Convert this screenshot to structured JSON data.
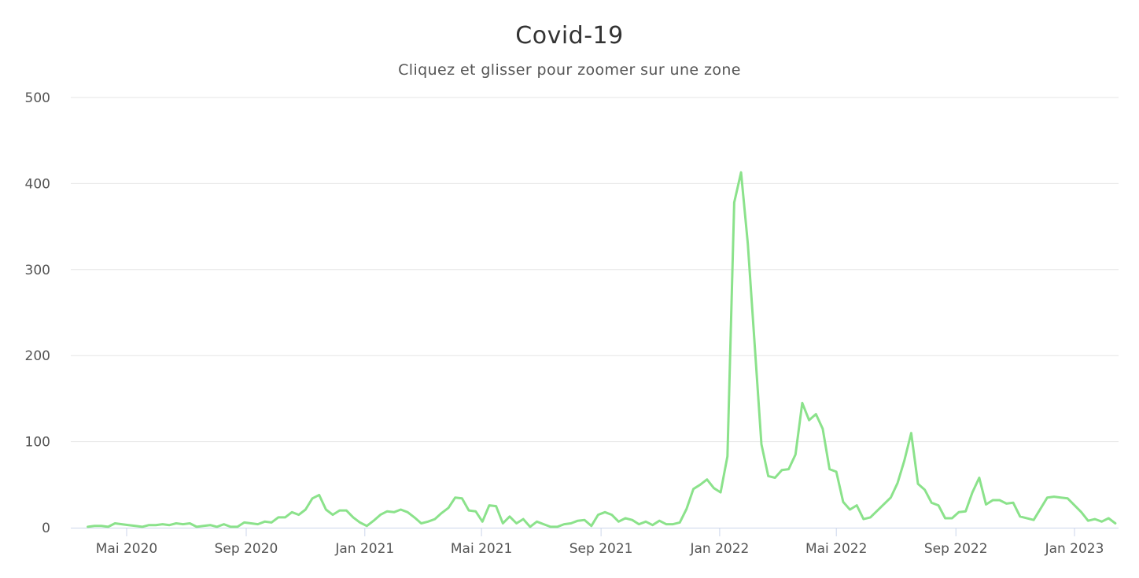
{
  "chart_data": {
    "type": "line",
    "title": "Covid-19",
    "subtitle": "Cliquez et glisser pour zoomer sur une zone",
    "xlabel": "",
    "ylabel": "",
    "ylim": [
      0,
      500
    ],
    "y_ticks": [
      "0",
      "100",
      "200",
      "300",
      "400",
      "500"
    ],
    "x_ticks": [
      {
        "label": "Mai 2020",
        "date": "2020-05-01"
      },
      {
        "label": "Sep 2020",
        "date": "2020-09-01"
      },
      {
        "label": "Jan 2021",
        "date": "2021-01-01"
      },
      {
        "label": "Mai 2021",
        "date": "2021-05-01"
      },
      {
        "label": "Sep 2021",
        "date": "2021-09-01"
      },
      {
        "label": "Jan 2022",
        "date": "2022-01-01"
      },
      {
        "label": "Mai 2022",
        "date": "2022-05-01"
      },
      {
        "label": "Sep 2022",
        "date": "2022-09-01"
      },
      {
        "label": "Jan 2023",
        "date": "2023-01-01"
      }
    ],
    "grid": true,
    "legend": "none",
    "line_color": "#8be28b",
    "series": [
      {
        "points": [
          [
            "2020-03-22",
            1
          ],
          [
            "2020-03-29",
            2
          ],
          [
            "2020-04-05",
            2
          ],
          [
            "2020-04-12",
            1
          ],
          [
            "2020-04-19",
            5
          ],
          [
            "2020-04-26",
            4
          ],
          [
            "2020-05-03",
            3
          ],
          [
            "2020-05-10",
            2
          ],
          [
            "2020-05-17",
            1
          ],
          [
            "2020-05-24",
            3
          ],
          [
            "2020-05-31",
            3
          ],
          [
            "2020-06-07",
            4
          ],
          [
            "2020-06-14",
            3
          ],
          [
            "2020-06-21",
            5
          ],
          [
            "2020-06-28",
            4
          ],
          [
            "2020-07-05",
            5
          ],
          [
            "2020-07-12",
            1
          ],
          [
            "2020-07-19",
            2
          ],
          [
            "2020-07-26",
            3
          ],
          [
            "2020-08-02",
            1
          ],
          [
            "2020-08-09",
            4
          ],
          [
            "2020-08-16",
            1
          ],
          [
            "2020-08-23",
            1
          ],
          [
            "2020-08-30",
            6
          ],
          [
            "2020-09-06",
            5
          ],
          [
            "2020-09-13",
            4
          ],
          [
            "2020-09-20",
            7
          ],
          [
            "2020-09-27",
            6
          ],
          [
            "2020-10-04",
            12
          ],
          [
            "2020-10-11",
            12
          ],
          [
            "2020-10-18",
            18
          ],
          [
            "2020-10-25",
            15
          ],
          [
            "2020-11-01",
            21
          ],
          [
            "2020-11-08",
            34
          ],
          [
            "2020-11-15",
            38
          ],
          [
            "2020-11-22",
            21
          ],
          [
            "2020-11-29",
            15
          ],
          [
            "2020-12-06",
            20
          ],
          [
            "2020-12-13",
            20
          ],
          [
            "2020-12-20",
            12
          ],
          [
            "2020-12-27",
            6
          ],
          [
            "2021-01-03",
            2
          ],
          [
            "2021-01-10",
            8
          ],
          [
            "2021-01-17",
            15
          ],
          [
            "2021-01-24",
            19
          ],
          [
            "2021-01-31",
            18
          ],
          [
            "2021-02-07",
            21
          ],
          [
            "2021-02-14",
            18
          ],
          [
            "2021-02-21",
            12
          ],
          [
            "2021-02-28",
            5
          ],
          [
            "2021-03-07",
            7
          ],
          [
            "2021-03-14",
            10
          ],
          [
            "2021-03-21",
            17
          ],
          [
            "2021-03-28",
            23
          ],
          [
            "2021-04-04",
            35
          ],
          [
            "2021-04-11",
            34
          ],
          [
            "2021-04-18",
            20
          ],
          [
            "2021-04-25",
            19
          ],
          [
            "2021-05-02",
            7
          ],
          [
            "2021-05-09",
            26
          ],
          [
            "2021-05-16",
            25
          ],
          [
            "2021-05-23",
            5
          ],
          [
            "2021-05-30",
            13
          ],
          [
            "2021-06-06",
            5
          ],
          [
            "2021-06-13",
            10
          ],
          [
            "2021-06-20",
            1
          ],
          [
            "2021-06-27",
            7
          ],
          [
            "2021-07-04",
            4
          ],
          [
            "2021-07-11",
            1
          ],
          [
            "2021-07-18",
            1
          ],
          [
            "2021-07-25",
            4
          ],
          [
            "2021-08-01",
            5
          ],
          [
            "2021-08-08",
            8
          ],
          [
            "2021-08-15",
            9
          ],
          [
            "2021-08-22",
            2
          ],
          [
            "2021-08-29",
            15
          ],
          [
            "2021-09-05",
            18
          ],
          [
            "2021-09-12",
            15
          ],
          [
            "2021-09-19",
            7
          ],
          [
            "2021-09-26",
            11
          ],
          [
            "2021-10-03",
            9
          ],
          [
            "2021-10-10",
            4
          ],
          [
            "2021-10-17",
            7
          ],
          [
            "2021-10-24",
            3
          ],
          [
            "2021-10-31",
            8
          ],
          [
            "2021-11-07",
            4
          ],
          [
            "2021-11-14",
            4
          ],
          [
            "2021-11-21",
            6
          ],
          [
            "2021-11-28",
            22
          ],
          [
            "2021-12-05",
            45
          ],
          [
            "2021-12-12",
            50
          ],
          [
            "2021-12-19",
            56
          ],
          [
            "2021-12-26",
            46
          ],
          [
            "2022-01-02",
            41
          ],
          [
            "2022-01-09",
            83
          ],
          [
            "2022-01-16",
            378
          ],
          [
            "2022-01-23",
            413
          ],
          [
            "2022-01-30",
            330
          ],
          [
            "2022-02-13",
            97
          ],
          [
            "2022-02-20",
            60
          ],
          [
            "2022-02-27",
            58
          ],
          [
            "2022-03-06",
            67
          ],
          [
            "2022-03-13",
            68
          ],
          [
            "2022-03-20",
            85
          ],
          [
            "2022-03-27",
            145
          ],
          [
            "2022-04-03",
            125
          ],
          [
            "2022-04-10",
            132
          ],
          [
            "2022-04-17",
            115
          ],
          [
            "2022-04-24",
            68
          ],
          [
            "2022-05-01",
            65
          ],
          [
            "2022-05-08",
            30
          ],
          [
            "2022-05-15",
            21
          ],
          [
            "2022-05-22",
            26
          ],
          [
            "2022-05-29",
            10
          ],
          [
            "2022-06-05",
            12
          ],
          [
            "2022-06-26",
            35
          ],
          [
            "2022-07-03",
            52
          ],
          [
            "2022-07-10",
            78
          ],
          [
            "2022-07-17",
            110
          ],
          [
            "2022-07-24",
            51
          ],
          [
            "2022-07-31",
            44
          ],
          [
            "2022-08-07",
            29
          ],
          [
            "2022-08-14",
            26
          ],
          [
            "2022-08-21",
            11
          ],
          [
            "2022-08-28",
            11
          ],
          [
            "2022-09-04",
            18
          ],
          [
            "2022-09-11",
            19
          ],
          [
            "2022-09-18",
            41
          ],
          [
            "2022-09-25",
            58
          ],
          [
            "2022-10-02",
            27
          ],
          [
            "2022-10-09",
            32
          ],
          [
            "2022-10-16",
            32
          ],
          [
            "2022-10-23",
            28
          ],
          [
            "2022-10-30",
            29
          ],
          [
            "2022-11-06",
            13
          ],
          [
            "2022-11-20",
            9
          ],
          [
            "2022-12-04",
            35
          ],
          [
            "2022-12-11",
            36
          ],
          [
            "2022-12-18",
            35
          ],
          [
            "2022-12-25",
            34
          ],
          [
            "2023-01-08",
            18
          ],
          [
            "2023-01-15",
            8
          ],
          [
            "2023-01-22",
            10
          ],
          [
            "2023-01-29",
            7
          ],
          [
            "2023-02-05",
            11
          ],
          [
            "2023-02-12",
            5
          ]
        ]
      }
    ]
  }
}
